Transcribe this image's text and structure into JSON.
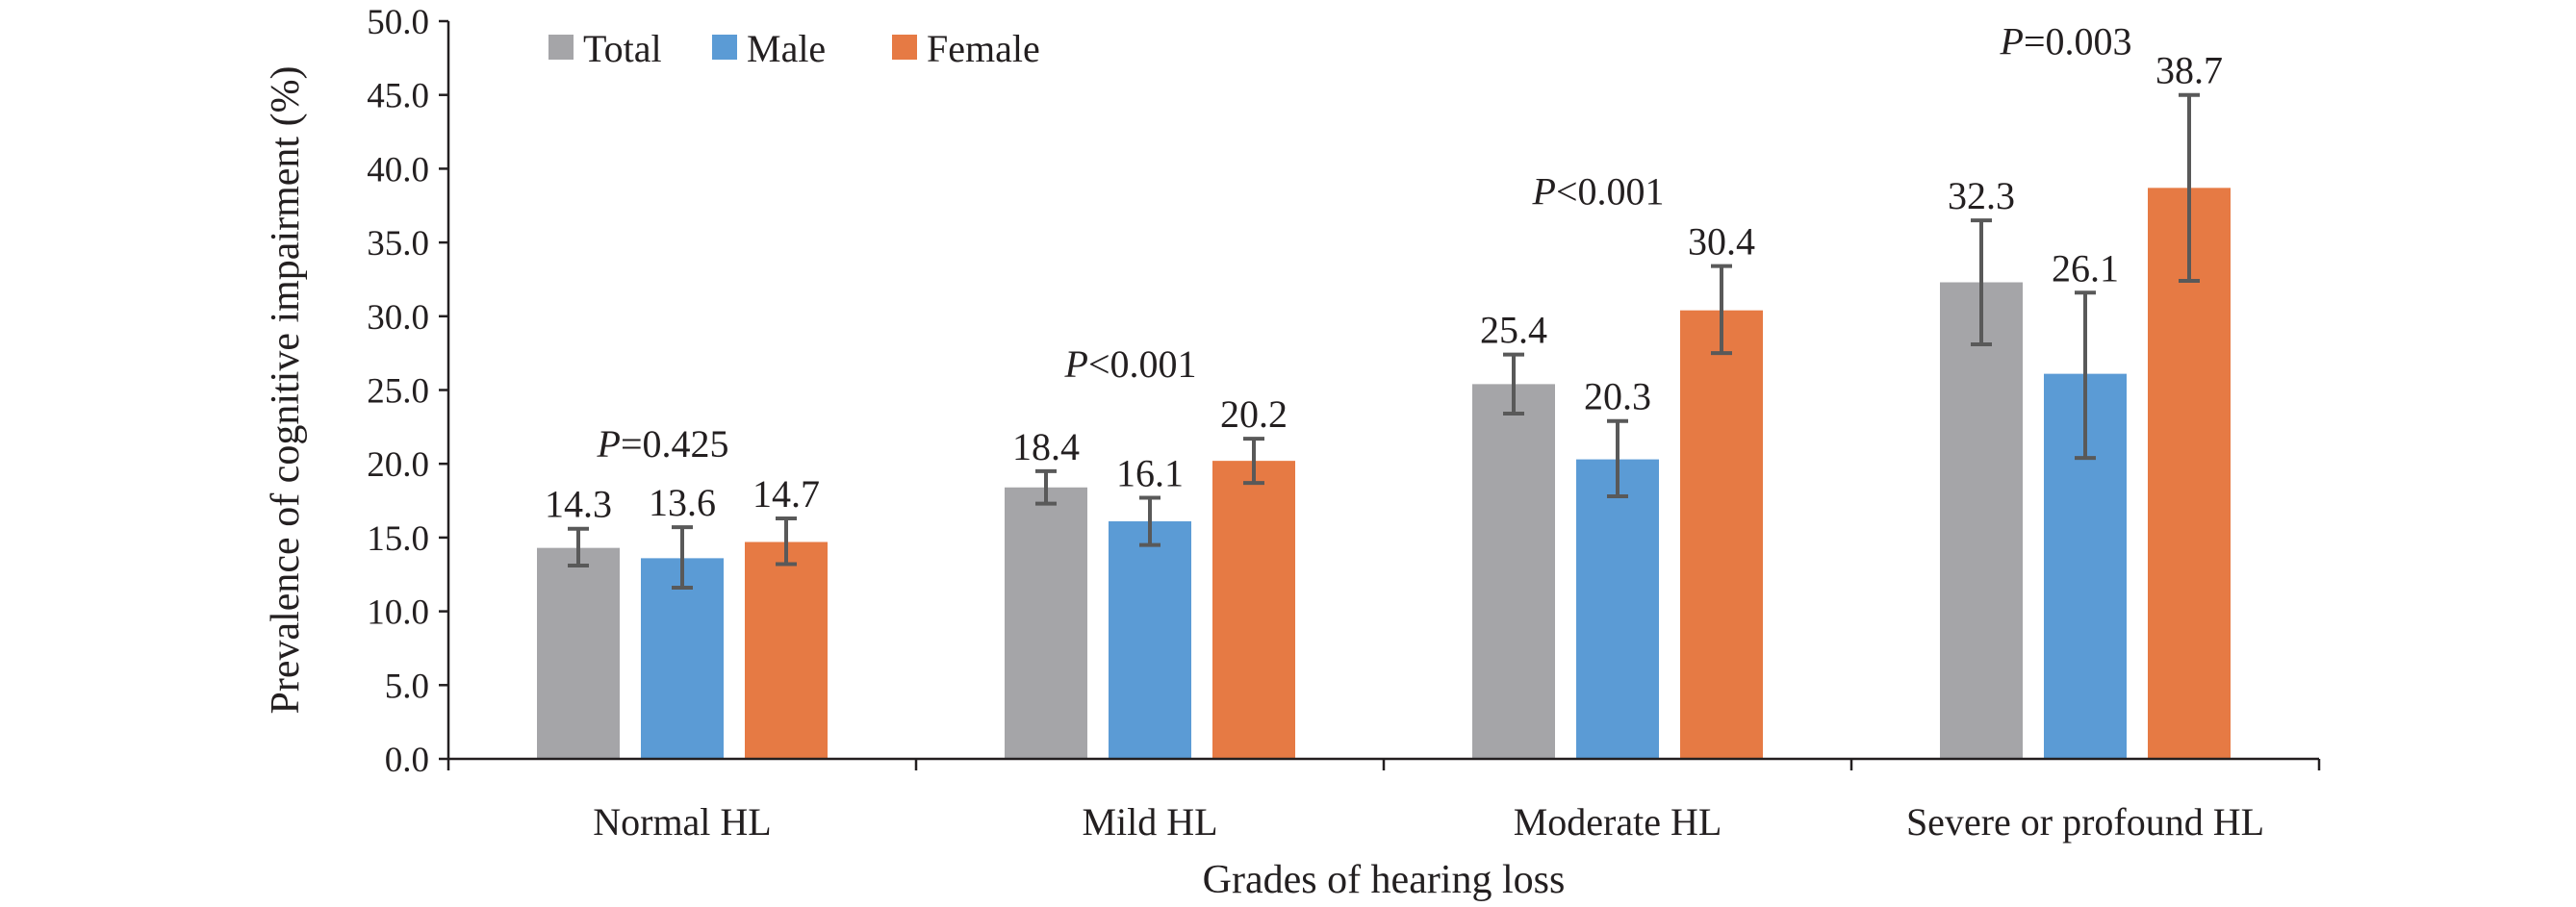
{
  "chart_data": {
    "type": "bar",
    "xlabel": "Grades of hearing loss",
    "ylabel": "Prevalence of cognitive impairment (%)",
    "ylim": [
      0,
      50
    ],
    "ytick_step": 5,
    "ytick_labels": [
      "0.0",
      "5.0",
      "10.0",
      "15.0",
      "20.0",
      "25.0",
      "30.0",
      "35.0",
      "40.0",
      "45.0",
      "50.0"
    ],
    "categories": [
      "Normal HL",
      "Mild HL",
      "Moderate HL",
      "Severe or profound HL"
    ],
    "legend_position": "top-left",
    "grid": false,
    "series": [
      {
        "name": "Total",
        "color": "#a5a5a8",
        "values": [
          14.3,
          18.4,
          25.4,
          32.3
        ],
        "labels": [
          "14.3",
          "18.4",
          "25.4",
          "32.3"
        ],
        "err_low": [
          13.1,
          17.3,
          23.4,
          28.1
        ],
        "err_high": [
          15.6,
          19.5,
          27.4,
          36.5
        ]
      },
      {
        "name": "Male",
        "color": "#5b9bd5",
        "values": [
          13.6,
          16.1,
          20.3,
          26.1
        ],
        "labels": [
          "13.6",
          "16.1",
          "20.3",
          "26.1"
        ],
        "err_low": [
          11.6,
          14.5,
          17.8,
          20.4
        ],
        "err_high": [
          15.7,
          17.7,
          22.9,
          31.6
        ]
      },
      {
        "name": "Female",
        "color": "#e67a44",
        "values": [
          14.7,
          20.2,
          30.4,
          38.7
        ],
        "labels": [
          "14.7",
          "20.2",
          "30.4",
          "38.7"
        ],
        "err_low": [
          13.2,
          18.7,
          27.5,
          32.4
        ],
        "err_high": [
          16.3,
          21.7,
          33.4,
          45.0
        ]
      }
    ],
    "annotations": [
      {
        "category": "Normal HL",
        "p_letter": "P",
        "p_rest": "=0.425"
      },
      {
        "category": "Mild HL",
        "p_letter": "P",
        "p_rest": "<0.001"
      },
      {
        "category": "Moderate HL",
        "p_letter": "P",
        "p_rest": "<0.001"
      },
      {
        "category": "Severe or profound HL",
        "p_letter": "P",
        "p_rest": "=0.003"
      }
    ]
  }
}
